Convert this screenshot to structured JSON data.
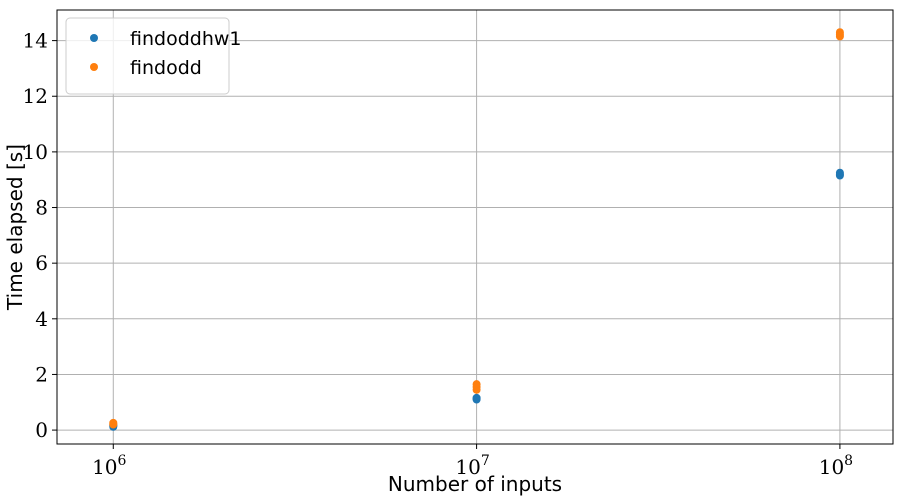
{
  "chart_data": {
    "type": "scatter",
    "title": "",
    "xlabel": "Number of inputs",
    "ylabel": "Time elapsed [s]",
    "xscale": "log",
    "xlim": [
      700000,
      140000000
    ],
    "ylim": [
      -0.5,
      15.1
    ],
    "xticks": [
      {
        "value": 1000000,
        "base": "10",
        "exp": "6"
      },
      {
        "value": 10000000,
        "base": "10",
        "exp": "7"
      },
      {
        "value": 100000000,
        "base": "10",
        "exp": "8"
      }
    ],
    "yticks": [
      0,
      2,
      4,
      6,
      8,
      10,
      12,
      14
    ],
    "grid": true,
    "legend_position": "top-left",
    "series": [
      {
        "name": "findoddhw1",
        "color": "#1f77b4",
        "points": [
          {
            "x": 1000000,
            "y": 0.12
          },
          {
            "x": 1000000,
            "y": 0.15
          },
          {
            "x": 1000000,
            "y": 0.18
          },
          {
            "x": 10000000,
            "y": 1.1
          },
          {
            "x": 10000000,
            "y": 1.13
          },
          {
            "x": 10000000,
            "y": 1.16
          },
          {
            "x": 100000000,
            "y": 9.15
          },
          {
            "x": 100000000,
            "y": 9.2
          },
          {
            "x": 100000000,
            "y": 9.25
          }
        ]
      },
      {
        "name": "findodd",
        "color": "#ff7f0e",
        "points": [
          {
            "x": 1000000,
            "y": 0.2
          },
          {
            "x": 1000000,
            "y": 0.23
          },
          {
            "x": 1000000,
            "y": 0.26
          },
          {
            "x": 10000000,
            "y": 1.45
          },
          {
            "x": 10000000,
            "y": 1.55
          },
          {
            "x": 10000000,
            "y": 1.65
          },
          {
            "x": 100000000,
            "y": 14.15
          },
          {
            "x": 100000000,
            "y": 14.22
          },
          {
            "x": 100000000,
            "y": 14.3
          }
        ]
      }
    ]
  }
}
